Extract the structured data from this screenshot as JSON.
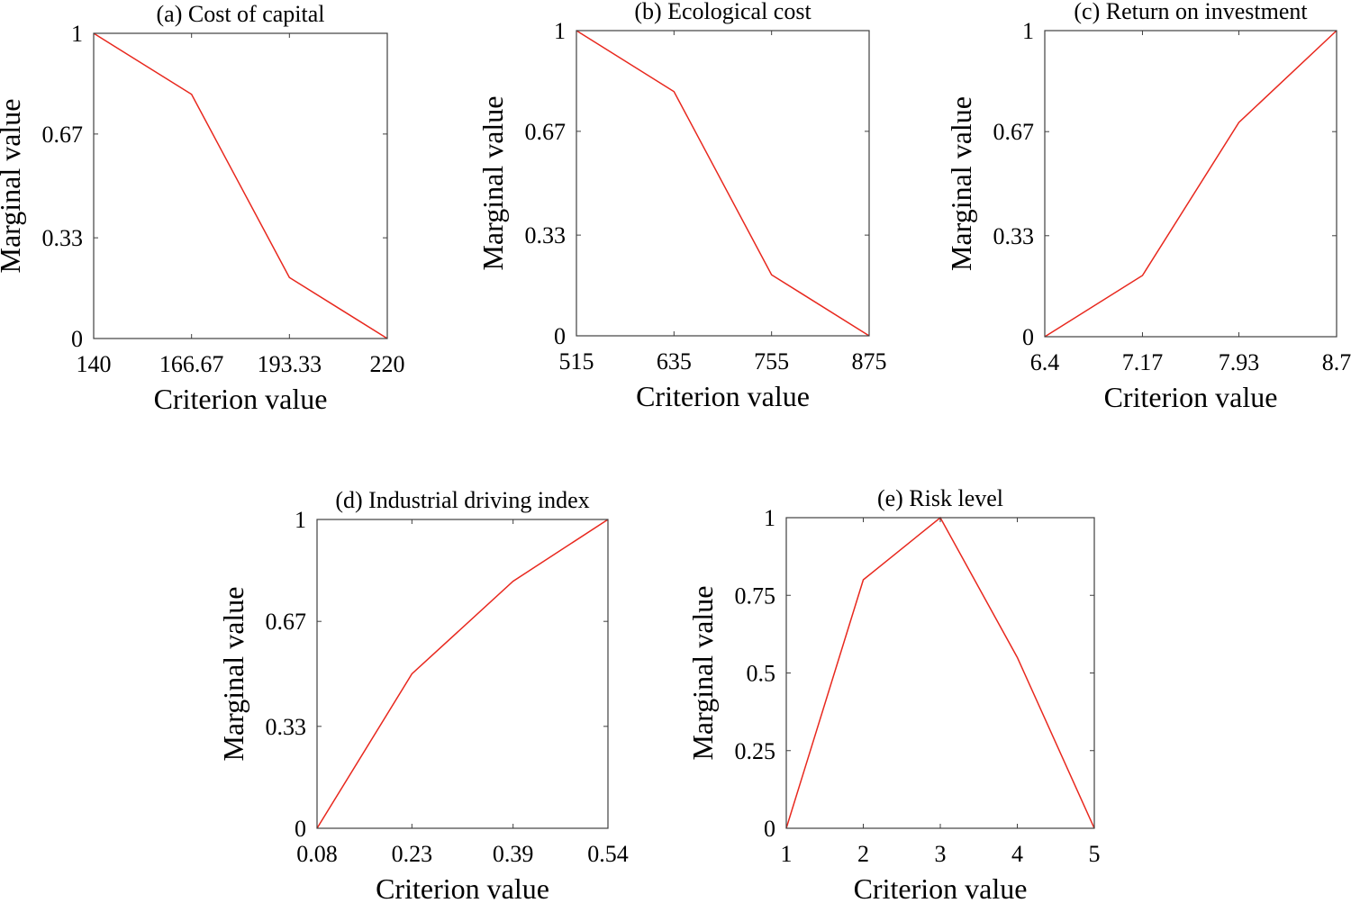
{
  "colors": {
    "line": "#e8281e",
    "axes": "#3f3f3f",
    "background": "#ffffff"
  },
  "chart_data": [
    {
      "type": "line",
      "title": "(a) Cost of capital",
      "xlabel": "Criterion value",
      "ylabel": "Marginal value",
      "x": [
        140,
        166.67,
        193.33,
        220
      ],
      "y": [
        1,
        0.8,
        0.2,
        0
      ],
      "xlim": [
        140,
        220
      ],
      "ylim": [
        0,
        1
      ],
      "xticks": [
        140,
        166.67,
        193.33,
        220
      ],
      "xtick_labels": [
        "140",
        "166.67",
        "193.33",
        "220"
      ],
      "yticks": [
        0,
        0.33,
        0.67,
        1
      ],
      "ytick_labels": [
        "0",
        "0.33",
        "0.67",
        "1"
      ],
      "grid": false,
      "legend": "none"
    },
    {
      "type": "line",
      "title": "(b) Ecological cost",
      "xlabel": "Criterion value",
      "ylabel": "Marginal value",
      "x": [
        515,
        635,
        755,
        875
      ],
      "y": [
        1,
        0.8,
        0.2,
        0
      ],
      "xlim": [
        515,
        875
      ],
      "ylim": [
        0,
        1
      ],
      "xticks": [
        515,
        635,
        755,
        875
      ],
      "xtick_labels": [
        "515",
        "635",
        "755",
        "875"
      ],
      "yticks": [
        0,
        0.33,
        0.67,
        1
      ],
      "ytick_labels": [
        "0",
        "0.33",
        "0.67",
        "1"
      ],
      "grid": false,
      "legend": "none"
    },
    {
      "type": "line",
      "title": "(c) Return on investment",
      "xlabel": "Criterion value",
      "ylabel": "Marginal value",
      "x": [
        6.4,
        7.17,
        7.93,
        8.7
      ],
      "y": [
        0,
        0.2,
        0.7,
        1
      ],
      "xlim": [
        6.4,
        8.7
      ],
      "ylim": [
        0,
        1
      ],
      "xticks": [
        6.4,
        7.17,
        7.93,
        8.7
      ],
      "xtick_labels": [
        "6.4",
        "7.17",
        "7.93",
        "8.7"
      ],
      "yticks": [
        0,
        0.33,
        0.67,
        1
      ],
      "ytick_labels": [
        "0",
        "0.33",
        "0.67",
        "1"
      ],
      "grid": false,
      "legend": "none"
    },
    {
      "type": "line",
      "title": "(d) Industrial driving index",
      "xlabel": "Criterion value",
      "ylabel": "Marginal value",
      "x": [
        0.08,
        0.23,
        0.39,
        0.54
      ],
      "y": [
        0,
        0.5,
        0.8,
        1
      ],
      "xlim": [
        0.08,
        0.54
      ],
      "ylim": [
        0,
        1
      ],
      "xticks": [
        0.08,
        0.23,
        0.39,
        0.54
      ],
      "xtick_labels": [
        "0.08",
        "0.23",
        "0.39",
        "0.54"
      ],
      "yticks": [
        0,
        0.33,
        0.67,
        1
      ],
      "ytick_labels": [
        "0",
        "0.33",
        "0.67",
        "1"
      ],
      "grid": false,
      "legend": "none"
    },
    {
      "type": "line",
      "title": "(e) Risk level",
      "xlabel": "Criterion value",
      "ylabel": "Marginal value",
      "x": [
        1,
        2,
        3,
        4,
        5
      ],
      "y": [
        0,
        0.8,
        1,
        0.55,
        0
      ],
      "xlim": [
        1,
        5
      ],
      "ylim": [
        0,
        1
      ],
      "xticks": [
        1,
        2,
        3,
        4,
        5
      ],
      "xtick_labels": [
        "1",
        "2",
        "3",
        "4",
        "5"
      ],
      "yticks": [
        0,
        0.25,
        0.5,
        0.75,
        1
      ],
      "ytick_labels": [
        "0",
        "0.25",
        "0.5",
        "0.75",
        "1"
      ],
      "grid": false,
      "legend": "none"
    }
  ]
}
